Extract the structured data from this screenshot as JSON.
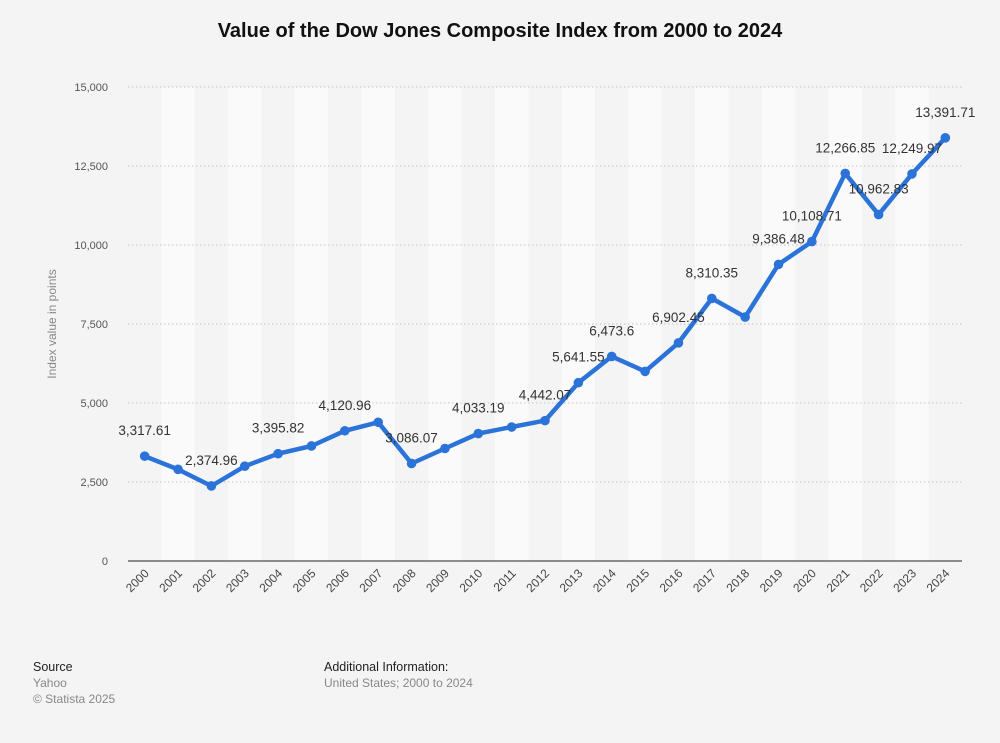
{
  "chart_data": {
    "type": "line",
    "title": "Value of the Dow Jones Composite Index from 2000 to 2024",
    "xlabel": "",
    "ylabel": "Index value in points",
    "ylim": [
      0,
      15000
    ],
    "yticks": [
      0,
      2500,
      5000,
      7500,
      10000,
      12500,
      15000
    ],
    "ytick_labels": [
      "0",
      "2,500",
      "5,000",
      "7,500",
      "10,000",
      "12,500",
      "15,000"
    ],
    "grid": true,
    "categories": [
      "2000",
      "2001",
      "2002",
      "2003",
      "2004",
      "2005",
      "2006",
      "2007",
      "2008",
      "2009",
      "2010",
      "2011",
      "2012",
      "2013",
      "2014",
      "2015",
      "2016",
      "2017",
      "2018",
      "2019",
      "2020",
      "2021",
      "2022",
      "2023",
      "2024"
    ],
    "series": [
      {
        "values": [
          3317.61,
          2900,
          2374.96,
          3000,
          3395.82,
          3640,
          4120.96,
          4390,
          3086.07,
          3560,
          4033.19,
          4240,
          4442.07,
          5641.55,
          6473.6,
          6000,
          6902.45,
          8310.35,
          7720,
          9386.48,
          10108.71,
          12266.85,
          10962.83,
          12249.97,
          13391.71
        ],
        "labels": [
          "3,317.61",
          "",
          "2,374.96",
          "",
          "3,395.82",
          "",
          "4,120.96",
          "",
          "3,086.07",
          "",
          "4,033.19",
          "",
          "4,442.07",
          "5,641.55",
          "6,473.6",
          "",
          "6,902.45",
          "8,310.35",
          "",
          "9,386.48",
          "10,108.71",
          "12,266.85",
          "10,962.83",
          "12,249.97",
          "13,391.71"
        ]
      }
    ],
    "line_color": "#2b73d9"
  },
  "footer": {
    "source_label": "Source",
    "source_value": "Yahoo",
    "copyright": "© Statista 2025",
    "additional_label": "Additional Information:",
    "additional_value": "United States; 2000 to 2024"
  }
}
